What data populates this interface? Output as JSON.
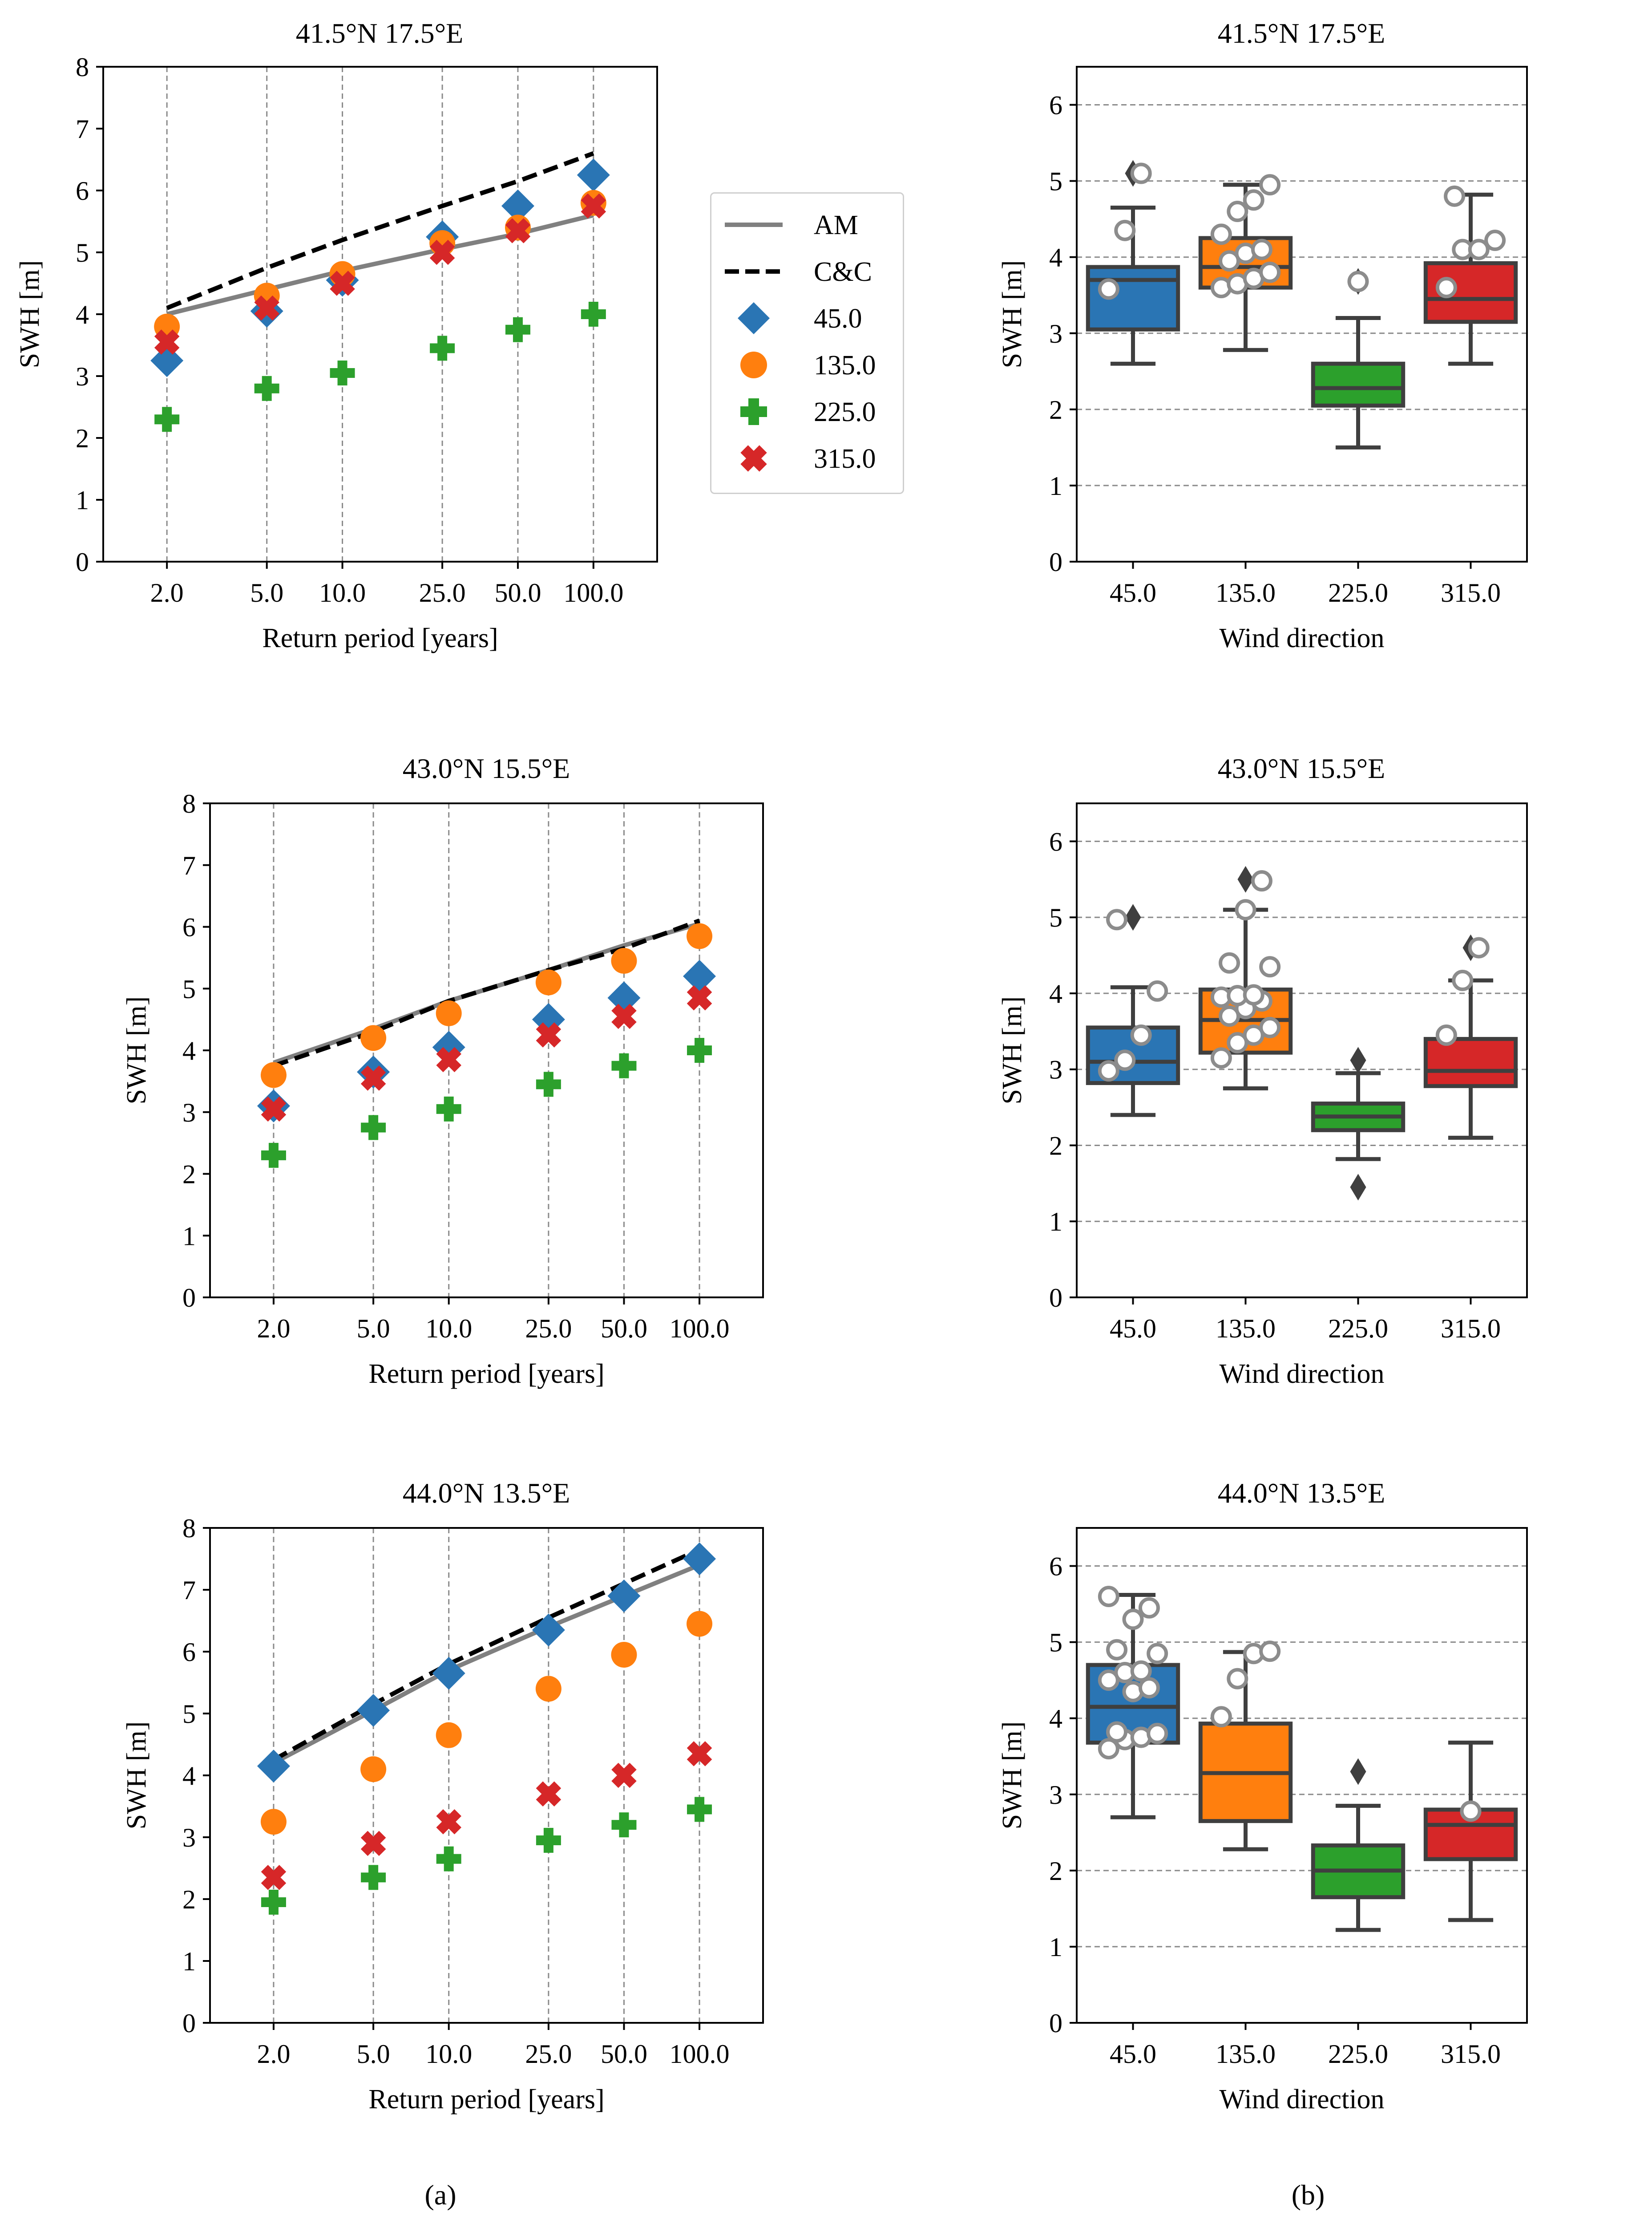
{
  "colors": {
    "45.0": "#2a75b4",
    "135.0": "#ff7f0e",
    "225.0": "#2ca02c",
    "315.0": "#d62728",
    "AM": "#808080",
    "C&C": "#000000"
  },
  "legend": {
    "entries": [
      {
        "label": "AM",
        "marker": "solid-line"
      },
      {
        "label": "C&C",
        "marker": "dashed-line"
      },
      {
        "label": "45.0",
        "marker": "diamond"
      },
      {
        "label": "135.0",
        "marker": "circle"
      },
      {
        "label": "225.0",
        "marker": "plus"
      },
      {
        "label": "315.0",
        "marker": "x"
      }
    ]
  },
  "panel_labels": {
    "a": "(a)",
    "b": "(b)"
  },
  "chart_data": [
    {
      "type": "scatter",
      "title": "41.5°N 17.5°E",
      "xlabel": "Return period [years]",
      "ylabel": "SWH [m]",
      "x_scale": "log",
      "x_ticks": [
        "2.0",
        "5.0",
        "10.0",
        "25.0",
        "50.0",
        "100.0"
      ],
      "y_ticks": [
        "0",
        "1",
        "2",
        "3",
        "4",
        "5",
        "6",
        "7",
        "8"
      ],
      "ylim": [
        0,
        8
      ],
      "vertical_gridlines": true,
      "x": [
        2,
        5,
        10,
        25,
        50,
        100
      ],
      "lines": [
        {
          "name": "AM",
          "style": "solid",
          "values": [
            4.0,
            4.4,
            4.7,
            5.05,
            5.3,
            5.6
          ]
        },
        {
          "name": "C&C",
          "style": "dashed",
          "values": [
            4.1,
            4.75,
            5.2,
            5.75,
            6.15,
            6.6
          ]
        }
      ],
      "series": [
        {
          "name": "45.0",
          "marker": "diamond",
          "values": [
            3.25,
            4.05,
            4.55,
            5.25,
            5.75,
            6.25
          ]
        },
        {
          "name": "135.0",
          "marker": "circle",
          "values": [
            3.8,
            4.3,
            4.65,
            5.15,
            5.4,
            5.8
          ]
        },
        {
          "name": "225.0",
          "marker": "plus",
          "values": [
            2.3,
            2.8,
            3.05,
            3.45,
            3.75,
            4.0
          ]
        },
        {
          "name": "315.0",
          "marker": "x",
          "values": [
            3.55,
            4.1,
            4.5,
            5.0,
            5.35,
            5.75
          ]
        }
      ]
    },
    {
      "type": "box",
      "title": "41.5°N 17.5°E",
      "xlabel": "Wind direction",
      "ylabel": "SWH [m]",
      "categories": [
        "45.0",
        "135.0",
        "225.0",
        "315.0"
      ],
      "y_ticks": [
        "0",
        "1",
        "2",
        "3",
        "4",
        "5",
        "6"
      ],
      "ylim": [
        0,
        6.5
      ],
      "horizontal_gridlines": true,
      "boxes": [
        {
          "category": "45.0",
          "whislo": 2.6,
          "q1": 3.05,
          "med": 3.7,
          "q3": 3.87,
          "whishi": 4.65,
          "fliers": [
            5.1
          ],
          "points": [
            3.58,
            4.35,
            5.1
          ]
        },
        {
          "category": "135.0",
          "whislo": 2.78,
          "q1": 3.6,
          "med": 3.87,
          "q3": 4.25,
          "whishi": 4.95,
          "fliers": [],
          "points": [
            3.6,
            3.65,
            3.72,
            3.8,
            3.95,
            4.05,
            4.1,
            4.3,
            4.6,
            4.75,
            4.95
          ]
        },
        {
          "category": "225.0",
          "whislo": 1.5,
          "q1": 2.05,
          "med": 2.28,
          "q3": 2.6,
          "whishi": 3.2,
          "fliers": [
            3.68
          ],
          "points": [
            3.68
          ]
        },
        {
          "category": "315.0",
          "whislo": 2.6,
          "q1": 3.15,
          "med": 3.45,
          "q3": 3.92,
          "whishi": 4.82,
          "fliers": [],
          "points": [
            3.6,
            4.1,
            4.1,
            4.22,
            4.8
          ]
        }
      ]
    },
    {
      "type": "scatter",
      "title": "43.0°N 15.5°E",
      "xlabel": "Return period [years]",
      "ylabel": "SWH [m]",
      "x_scale": "log",
      "x_ticks": [
        "2.0",
        "5.0",
        "10.0",
        "25.0",
        "50.0",
        "100.0"
      ],
      "y_ticks": [
        "0",
        "1",
        "2",
        "3",
        "4",
        "5",
        "6",
        "7",
        "8"
      ],
      "ylim": [
        0,
        8
      ],
      "vertical_gridlines": true,
      "x": [
        2,
        5,
        10,
        25,
        50,
        100
      ],
      "lines": [
        {
          "name": "AM",
          "style": "solid",
          "values": [
            3.8,
            4.35,
            4.8,
            5.3,
            5.7,
            6.05
          ]
        },
        {
          "name": "C&C",
          "style": "dashed",
          "values": [
            3.75,
            4.3,
            4.8,
            5.3,
            5.65,
            6.1
          ]
        }
      ],
      "series": [
        {
          "name": "45.0",
          "marker": "diamond",
          "values": [
            3.1,
            3.65,
            4.05,
            4.5,
            4.85,
            5.2
          ]
        },
        {
          "name": "135.0",
          "marker": "circle",
          "values": [
            3.6,
            4.2,
            4.6,
            5.1,
            5.45,
            5.85
          ]
        },
        {
          "name": "225.0",
          "marker": "plus",
          "values": [
            2.3,
            2.75,
            3.05,
            3.45,
            3.75,
            4.0
          ]
        },
        {
          "name": "315.0",
          "marker": "x",
          "values": [
            3.05,
            3.55,
            3.85,
            4.25,
            4.55,
            4.85
          ]
        }
      ]
    },
    {
      "type": "box",
      "title": "43.0°N 15.5°E",
      "xlabel": "Wind direction",
      "ylabel": "SWH [m]",
      "categories": [
        "45.0",
        "135.0",
        "225.0",
        "315.0"
      ],
      "y_ticks": [
        "0",
        "1",
        "2",
        "3",
        "4",
        "5",
        "6"
      ],
      "ylim": [
        0,
        6.5
      ],
      "horizontal_gridlines": true,
      "boxes": [
        {
          "category": "45.0",
          "whislo": 2.4,
          "q1": 2.82,
          "med": 3.1,
          "q3": 3.55,
          "whishi": 4.08,
          "fliers": [
            5.0
          ],
          "points": [
            2.98,
            3.12,
            3.45,
            4.03,
            4.97
          ]
        },
        {
          "category": "135.0",
          "whislo": 2.75,
          "q1": 3.22,
          "med": 3.65,
          "q3": 4.05,
          "whishi": 5.1,
          "fliers": [
            5.5
          ],
          "points": [
            3.15,
            3.35,
            3.45,
            3.55,
            3.7,
            3.8,
            3.9,
            3.95,
            3.97,
            3.98,
            4.35,
            4.4,
            5.1,
            5.48
          ]
        },
        {
          "category": "225.0",
          "whislo": 1.82,
          "q1": 2.2,
          "med": 2.38,
          "q3": 2.55,
          "whishi": 2.95,
          "fliers": [
            1.45,
            3.12
          ],
          "points": []
        },
        {
          "category": "315.0",
          "whislo": 2.1,
          "q1": 2.78,
          "med": 2.98,
          "q3": 3.4,
          "whishi": 4.17,
          "fliers": [
            4.6
          ],
          "points": [
            3.45,
            4.17,
            4.6
          ]
        }
      ]
    },
    {
      "type": "scatter",
      "title": "44.0°N 13.5°E",
      "xlabel": "Return period [years]",
      "ylabel": "SWH [m]",
      "x_scale": "log",
      "x_ticks": [
        "2.0",
        "5.0",
        "10.0",
        "25.0",
        "50.0",
        "100.0"
      ],
      "y_ticks": [
        "0",
        "1",
        "2",
        "3",
        "4",
        "5",
        "6",
        "7",
        "8"
      ],
      "ylim": [
        0,
        8
      ],
      "vertical_gridlines": true,
      "x": [
        2,
        5,
        10,
        25,
        50,
        100
      ],
      "lines": [
        {
          "name": "AM",
          "style": "solid",
          "values": [
            4.2,
            5.05,
            5.7,
            6.4,
            6.9,
            7.4
          ]
        },
        {
          "name": "C&C",
          "style": "dashed",
          "values": [
            4.25,
            5.15,
            5.8,
            6.55,
            7.1,
            7.65
          ]
        }
      ],
      "series": [
        {
          "name": "45.0",
          "marker": "diamond",
          "values": [
            4.15,
            5.05,
            5.65,
            6.35,
            6.9,
            7.5
          ]
        },
        {
          "name": "135.0",
          "marker": "circle",
          "values": [
            3.25,
            4.1,
            4.65,
            5.4,
            5.95,
            6.45
          ]
        },
        {
          "name": "225.0",
          "marker": "plus",
          "values": [
            1.95,
            2.35,
            2.65,
            2.95,
            3.2,
            3.45
          ]
        },
        {
          "name": "315.0",
          "marker": "x",
          "values": [
            2.35,
            2.9,
            3.25,
            3.7,
            4.0,
            4.35
          ]
        }
      ]
    },
    {
      "type": "box",
      "title": "44.0°N 13.5°E",
      "xlabel": "Wind direction",
      "ylabel": "SWH [m]",
      "categories": [
        "45.0",
        "135.0",
        "225.0",
        "315.0"
      ],
      "y_ticks": [
        "0",
        "1",
        "2",
        "3",
        "4",
        "5",
        "6"
      ],
      "ylim": [
        0,
        6.5
      ],
      "horizontal_gridlines": true,
      "boxes": [
        {
          "category": "45.0",
          "whislo": 2.7,
          "q1": 3.68,
          "med": 4.15,
          "q3": 4.7,
          "whishi": 5.62,
          "fliers": [],
          "points": [
            3.6,
            3.72,
            3.75,
            3.8,
            3.82,
            4.35,
            4.4,
            4.5,
            4.6,
            4.62,
            4.85,
            4.9,
            5.3,
            5.45,
            5.6
          ]
        },
        {
          "category": "135.0",
          "whislo": 2.28,
          "q1": 2.65,
          "med": 3.28,
          "q3": 3.93,
          "whishi": 4.87,
          "fliers": [],
          "points": [
            4.02,
            4.52,
            4.85,
            4.88
          ]
        },
        {
          "category": "225.0",
          "whislo": 1.22,
          "q1": 1.65,
          "med": 2.0,
          "q3": 2.33,
          "whishi": 2.85,
          "fliers": [
            3.3
          ],
          "points": []
        },
        {
          "category": "315.0",
          "whislo": 1.35,
          "q1": 2.15,
          "med": 2.6,
          "q3": 2.8,
          "whishi": 3.68,
          "fliers": [],
          "points": [
            2.78
          ]
        }
      ]
    }
  ]
}
